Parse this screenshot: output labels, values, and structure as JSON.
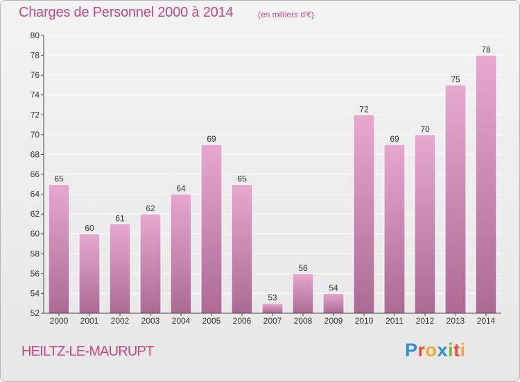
{
  "header": {
    "title": "Charges de Personnel 2000 à 2014",
    "unit": "(en milliers d'€)"
  },
  "footer": {
    "town": "HEILTZ-LE-MAURUPT",
    "logo": "Proxiti",
    "logo_colors": [
      "#2d8fd5",
      "#e84c3d",
      "#f0a92e",
      "#2d8fd5",
      "#7cb342",
      "#e84c3d",
      "#f0a92e"
    ]
  },
  "colors": {
    "title": "#c04a86",
    "bar_top": "#e7a8cf",
    "bar_bottom": "#ac6a94",
    "bar_stroke": "#ffffff",
    "grid": "#ffffff",
    "axis": "#444444"
  },
  "chart_data": {
    "type": "bar",
    "categories": [
      "2000",
      "2001",
      "2002",
      "2003",
      "2004",
      "2005",
      "2006",
      "2007",
      "2008",
      "2009",
      "2010",
      "2011",
      "2012",
      "2013",
      "2014"
    ],
    "values": [
      65,
      60,
      61,
      62,
      64,
      69,
      65,
      53,
      56,
      54,
      72,
      69,
      70,
      75,
      78
    ],
    "ylim": [
      52,
      80
    ],
    "yticks": [
      52,
      54,
      56,
      58,
      60,
      62,
      64,
      66,
      68,
      70,
      72,
      74,
      76,
      78,
      80
    ],
    "grid": true,
    "data_labels": true
  }
}
